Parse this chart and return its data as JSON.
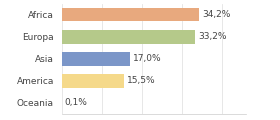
{
  "categories": [
    "Africa",
    "Europa",
    "Asia",
    "America",
    "Oceania"
  ],
  "values": [
    34.2,
    33.2,
    17.0,
    15.5,
    0.1
  ],
  "labels": [
    "34,2%",
    "33,2%",
    "17,0%",
    "15,5%",
    "0,1%"
  ],
  "bar_colors": [
    "#e8a97e",
    "#b5c98a",
    "#7b96c8",
    "#f5d98a",
    "#e8a97e"
  ],
  "background_color": "#ffffff",
  "xlim": [
    0,
    46
  ],
  "bar_height": 0.62,
  "label_fontsize": 6.5,
  "tick_fontsize": 6.5,
  "grid_color": "#dddddd",
  "text_color": "#444444",
  "spine_color": "#cccccc"
}
